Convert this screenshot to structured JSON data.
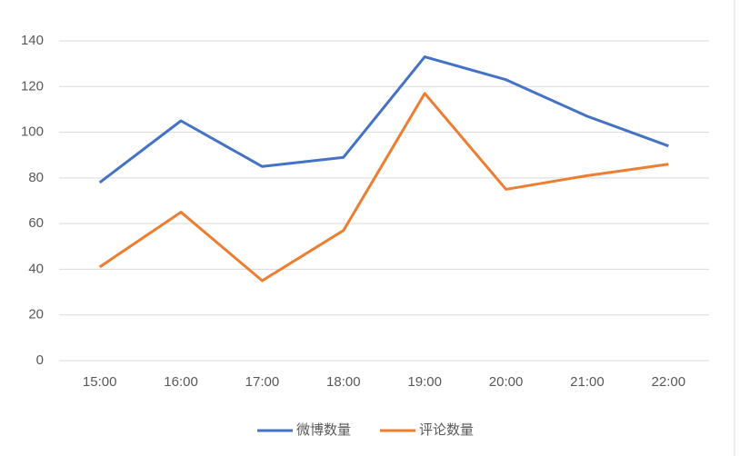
{
  "chart_data": {
    "type": "line",
    "categories": [
      "15:00",
      "16:00",
      "17:00",
      "18:00",
      "19:00",
      "20:00",
      "21:00",
      "22:00"
    ],
    "series": [
      {
        "name": "微博数量",
        "color": "#4472c4",
        "values": [
          78,
          105,
          85,
          89,
          133,
          123,
          107,
          94
        ]
      },
      {
        "name": "评论数量",
        "color": "#ed7d31",
        "values": [
          41,
          65,
          35,
          57,
          117,
          75,
          81,
          86
        ]
      }
    ],
    "ylim": [
      0,
      140
    ],
    "yticks": [
      0,
      20,
      40,
      60,
      80,
      100,
      120,
      140
    ],
    "grid": true,
    "legend": "bottom"
  }
}
